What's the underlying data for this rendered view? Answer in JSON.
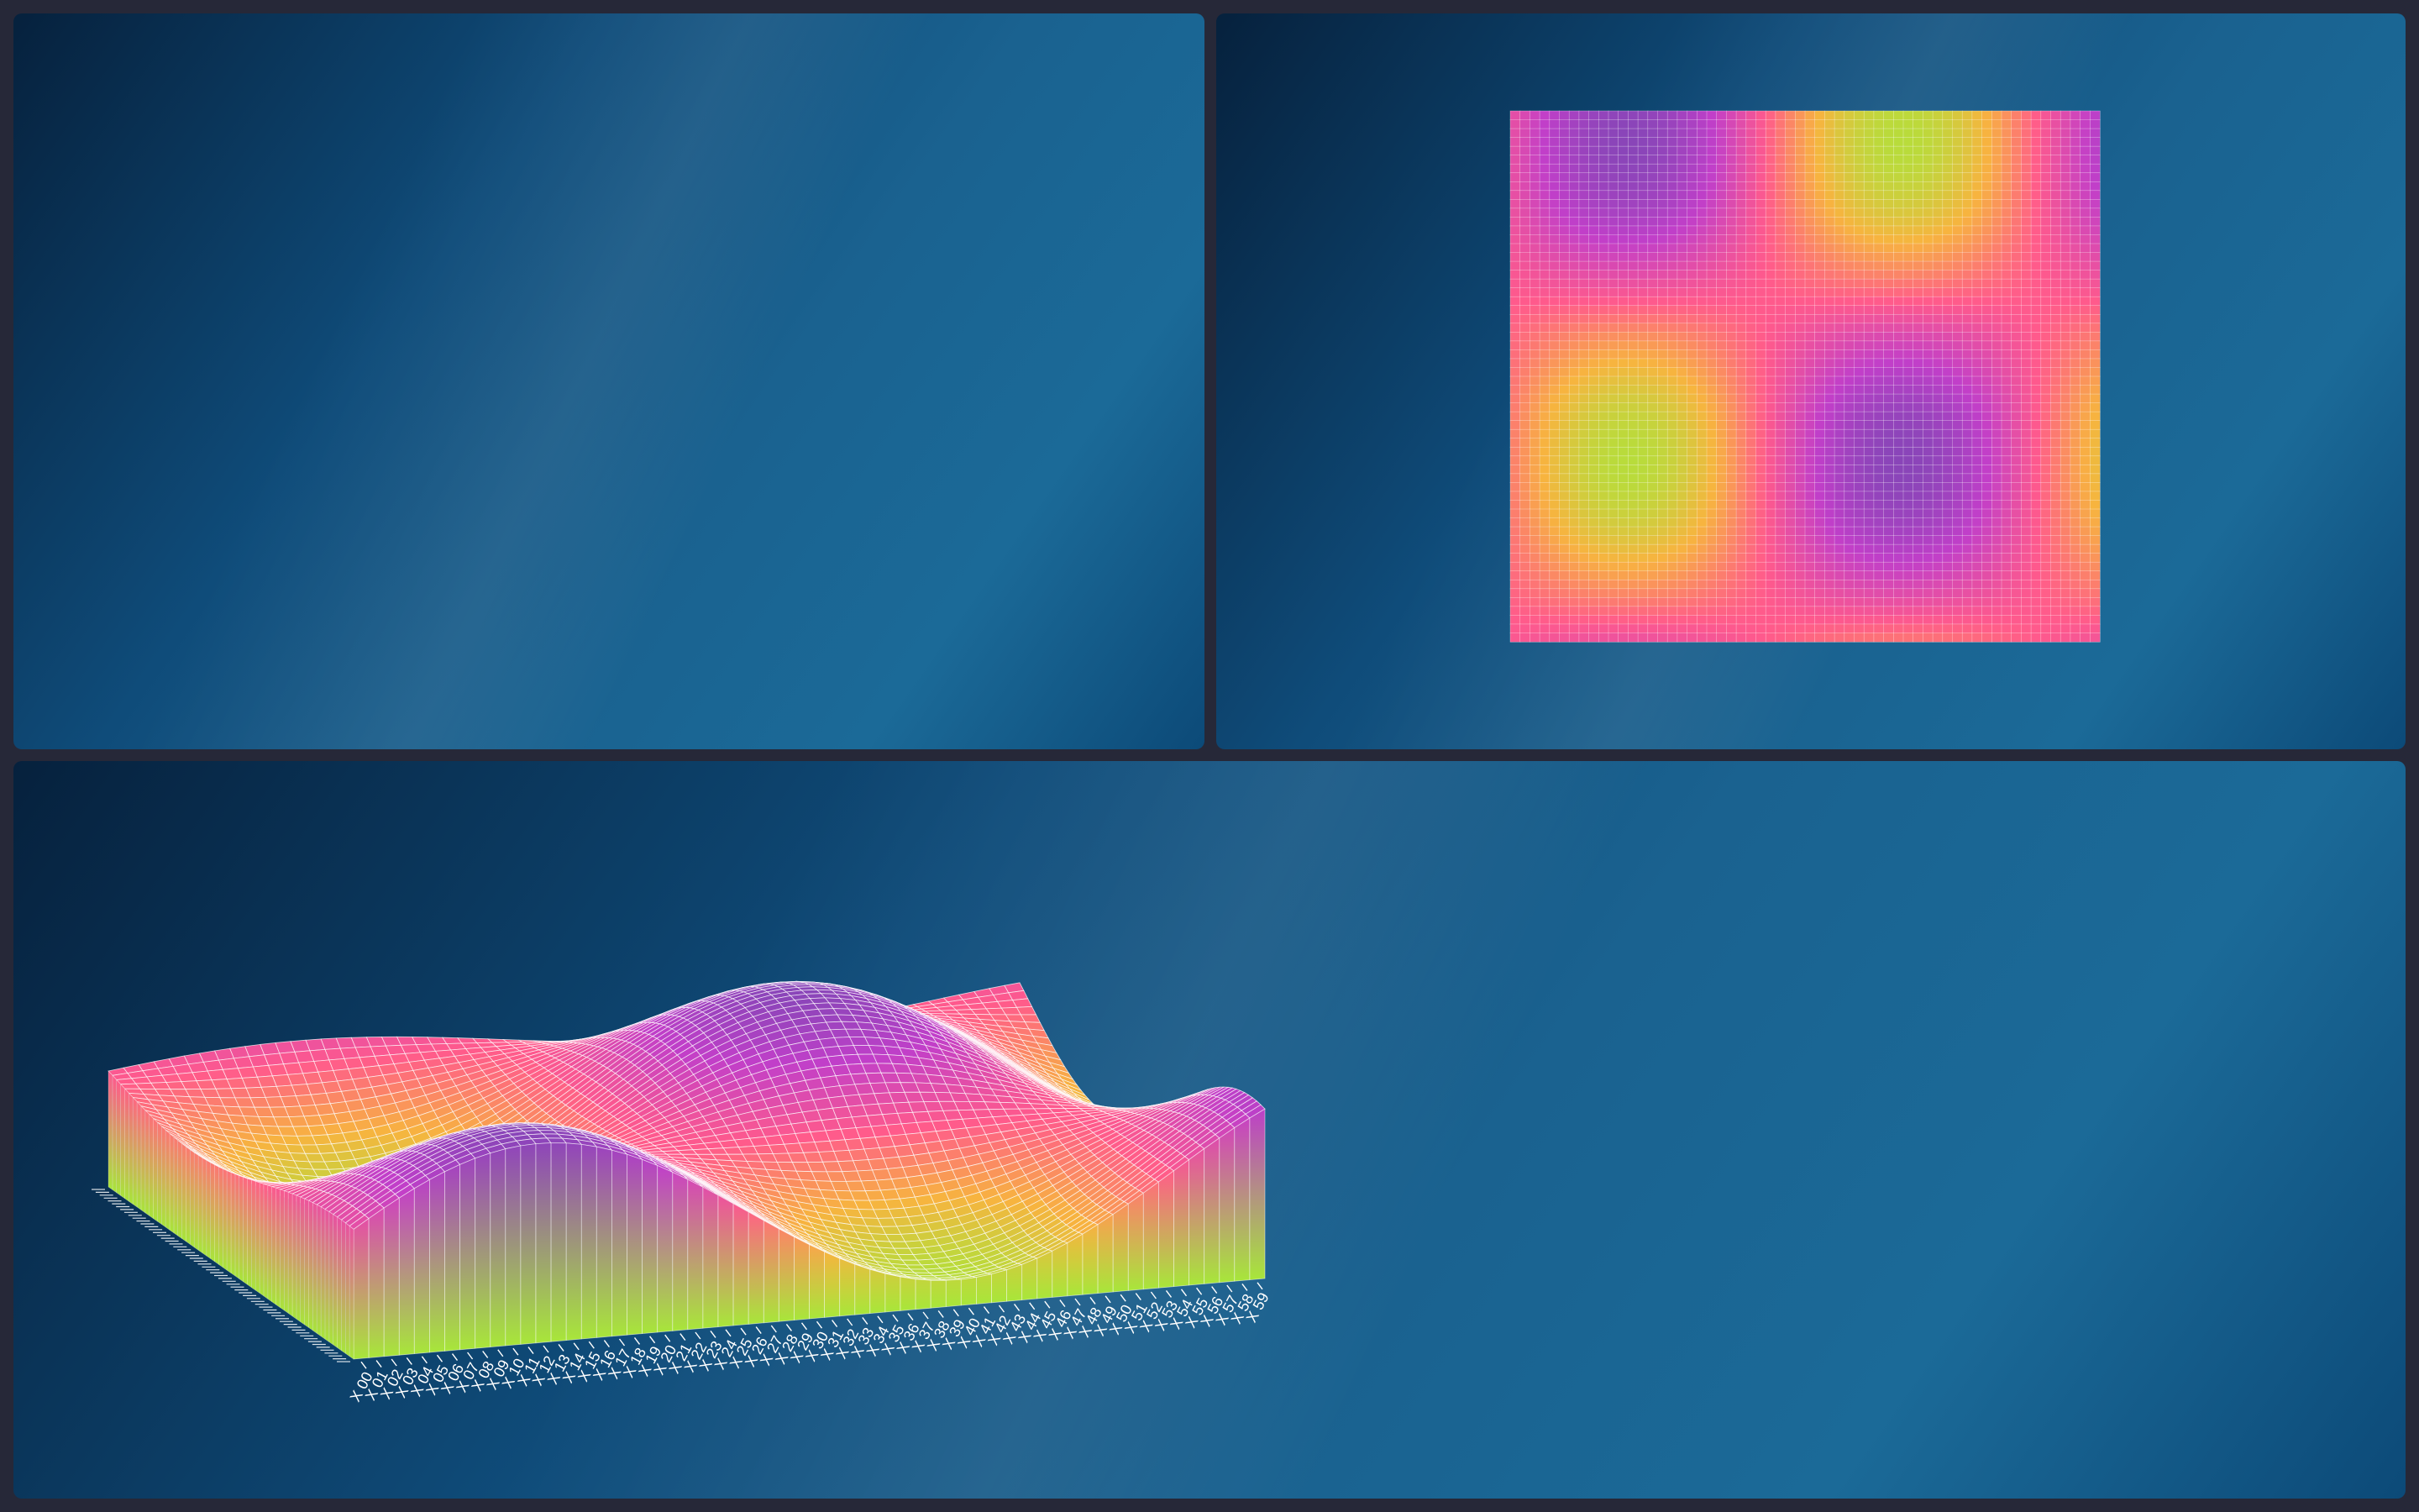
{
  "chart_data": [
    {
      "type": "surface",
      "view": "3d",
      "title": "",
      "xlabel": "",
      "ylabel": "",
      "zlabel": "",
      "grid_size": [
        60,
        60
      ],
      "x_ticks": [
        "X 00",
        "X 01",
        "X 02",
        "X 03",
        "X 04",
        "X 05",
        "X 06",
        "X 07",
        "X 08",
        "X 09",
        "X 10",
        "X 11",
        "X 12",
        "X 13",
        "X 14",
        "X 15",
        "X 16",
        "X 17",
        "X 18",
        "X 19",
        "X 20",
        "X 21",
        "X 22",
        "X 23",
        "X 24",
        "X 25",
        "X 26",
        "X 27",
        "X 28",
        "X 29",
        "X 30",
        "X 31",
        "X 32",
        "X 33",
        "X 34",
        "X 35",
        "X 36",
        "X 37",
        "X 38",
        "X 39",
        "X 40",
        "X 41",
        "X 42",
        "X 43",
        "X 44",
        "X 45",
        "X 46",
        "X 47",
        "X 48",
        "X 49",
        "X 50",
        "X 51",
        "X 52",
        "X 53",
        "X 54",
        "X 55",
        "X 56",
        "X 57",
        "X 58",
        "X 59"
      ],
      "z_function": "0.5 + 0.45*sin(1.7*x + 0.2) * cos(1.3*y - 0.3) (x,y normalized 0-4)",
      "colormap": [
        "#a8e63a",
        "#f7b43f",
        "#ff5a8c",
        "#c13fc9",
        "#7b47b4"
      ],
      "mesh_color": "#ffffff"
    },
    {
      "type": "heatmap",
      "view": "top",
      "grid_size": [
        60,
        60
      ],
      "colormap": [
        "#a8e63a",
        "#f7b43f",
        "#ff5a8c",
        "#c13fc9",
        "#7b47b4"
      ],
      "mesh_color": "#ffffff"
    }
  ]
}
